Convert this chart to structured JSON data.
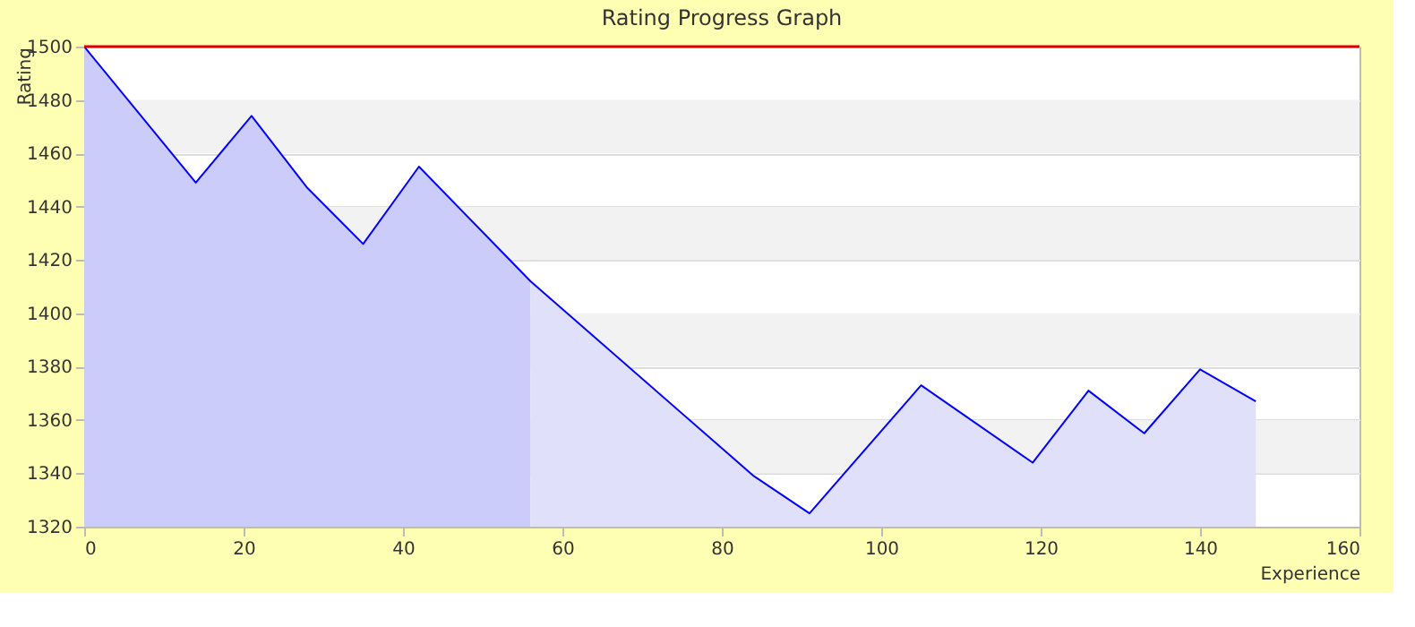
{
  "chart_data": {
    "type": "area",
    "title": "Rating Progress Graph",
    "xlabel": "Experience",
    "ylabel": "Rating",
    "series": [
      {
        "color": "#ccccfa",
        "x": [
          0,
          14,
          21,
          28,
          35,
          42,
          56
        ],
        "values": [
          1500,
          1449,
          1474,
          1447,
          1426,
          1455,
          1412
        ]
      },
      {
        "color": "#e0e0fa",
        "x": [
          56,
          84,
          91,
          105,
          119,
          126,
          133,
          140,
          147
        ],
        "values": [
          1412,
          1339,
          1325,
          1373,
          1344,
          1371,
          1355,
          1379,
          1367
        ]
      },
      {
        "type": "line",
        "color": "#0000ff",
        "x": [
          0,
          14,
          21,
          28,
          35,
          42,
          56,
          84,
          91,
          105,
          119,
          126,
          133,
          140,
          147
        ],
        "values": [
          1500,
          1449,
          1474,
          1447,
          1426,
          1455,
          1412,
          1339,
          1325,
          1373,
          1344,
          1371,
          1355,
          1379,
          1367
        ]
      }
    ],
    "ref_lines": [
      {
        "axis": "y",
        "value": 1500,
        "color": "#dd0000"
      }
    ],
    "bands": [
      {
        "axis": "y",
        "from": 1340,
        "to": 1360,
        "color": "#f2f2f2"
      },
      {
        "axis": "y",
        "from": 1380,
        "to": 1400,
        "color": "#f2f2f2"
      },
      {
        "axis": "y",
        "from": 1420,
        "to": 1440,
        "color": "#f2f2f2"
      },
      {
        "axis": "y",
        "from": 1460,
        "to": 1480,
        "color": "#f2f2f2"
      }
    ],
    "xlim": [
      0,
      160
    ],
    "xticks": [
      0,
      20,
      40,
      60,
      80,
      100,
      120,
      140,
      160
    ],
    "ylim": [
      1320,
      1500
    ],
    "yticks": [
      1320,
      1340,
      1360,
      1380,
      1400,
      1420,
      1440,
      1460,
      1480,
      1500
    ],
    "grid": "y",
    "legend": false
  }
}
